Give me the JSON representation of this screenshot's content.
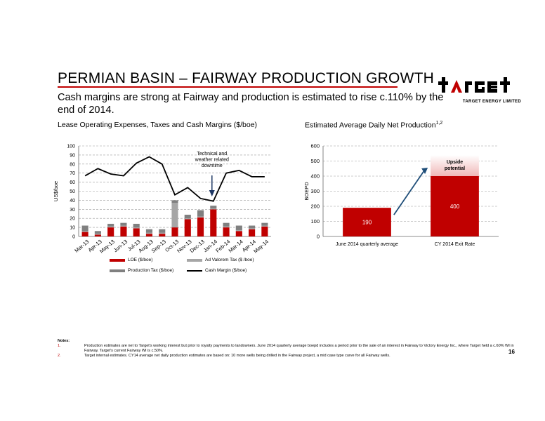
{
  "slide": {
    "title": "PERMIAN BASIN – FAIRWAY PRODUCTION GROWTH",
    "subtitle": "Cash margins are strong at Fairway and production is estimated to rise c.110% by the end of 2014.",
    "page_number": "16",
    "logo": {
      "word": "target",
      "tagline": "TARGET ENERGY LIMITED",
      "accent": "#c00000"
    },
    "notes": {
      "heading": "Notes:",
      "items": [
        {
          "num": "1.",
          "text": "Production estimates are net to Target's working interest but prior to royalty payments to landowners. June 2014 quarterly average boepd includes a period prior to the sale of an interest in Fairway to Victory Energy Inc., where Target held a c.60% WI in Fairway. Target's current Fairway WI is c.50%."
        },
        {
          "num": "2.",
          "text": "Target internal estimates. CY14 average net daily production estimates are based on: 10 more wells being drilled in the Fairway project, a mid case type curve for all Fairway wells."
        }
      ]
    }
  },
  "chart_data": [
    {
      "type": "bar",
      "title": "Lease Operating Expenses, Taxes and Cash Margins ($/boe)",
      "ylabel": "US$/boe",
      "ylim": [
        0,
        100
      ],
      "yticks": [
        "0",
        "10",
        "20",
        "30",
        "40",
        "50",
        "60",
        "70",
        "80",
        "90",
        "100"
      ],
      "grid": true,
      "categories": [
        "Mar-13",
        "Apr-13",
        "May-13",
        "Jun-13",
        "Jul-13",
        "Aug-13",
        "Sep-13",
        "Oct-13",
        "Nov-13",
        "Dec-13",
        "Jan-14",
        "Feb-14",
        "Mar-14",
        "Apr-14",
        "May-14"
      ],
      "series": [
        {
          "name": "LOE ($/boe)",
          "kind": "bar",
          "color": "#c00000",
          "values": [
            5,
            2,
            10,
            11,
            9,
            3,
            3,
            10,
            19,
            21,
            30,
            10,
            6,
            8,
            11
          ]
        },
        {
          "name": "Ad Valorem Tax ($ /boe)",
          "kind": "bar",
          "color": "#a6a6a6",
          "values": [
            1,
            1,
            1,
            1,
            1,
            1,
            1,
            27,
            1,
            1,
            1,
            1,
            1,
            1,
            1
          ]
        },
        {
          "name": "Production Tax ($/boe)",
          "kind": "bar",
          "color": "#808080",
          "values": [
            6,
            3,
            3,
            3,
            4,
            4,
            4,
            3,
            4,
            7,
            3,
            4,
            5,
            3,
            3
          ]
        },
        {
          "name": "Cash Margin ($/boe)",
          "kind": "line",
          "color": "#000000",
          "values": [
            67,
            75,
            69,
            67,
            81,
            88,
            80,
            46,
            54,
            42,
            39,
            70,
            73,
            66,
            66
          ]
        }
      ],
      "annotation": {
        "text": [
          "Technical and",
          "weather related",
          "downtime"
        ],
        "color": "#1f3864"
      },
      "legend_position": "bottom"
    },
    {
      "type": "bar",
      "title": "Estimated Average Daily Net Production",
      "title_superscript": "1,2",
      "ylabel": "BOEPD",
      "ylim": [
        0,
        600
      ],
      "yticks": [
        "0",
        "100",
        "200",
        "300",
        "400",
        "500",
        "600"
      ],
      "grid": true,
      "categories": [
        "June 2014 quarterly average",
        "CY 2014 Exit Rate"
      ],
      "values": [
        190,
        400
      ],
      "value_labels": [
        "190",
        "400"
      ],
      "color": "#c00000",
      "upside": {
        "label": [
          "Upside",
          "potential"
        ],
        "from": 400,
        "to": 540,
        "color": "#f0b8b8"
      },
      "arrow_color": "#1f4e79"
    }
  ]
}
